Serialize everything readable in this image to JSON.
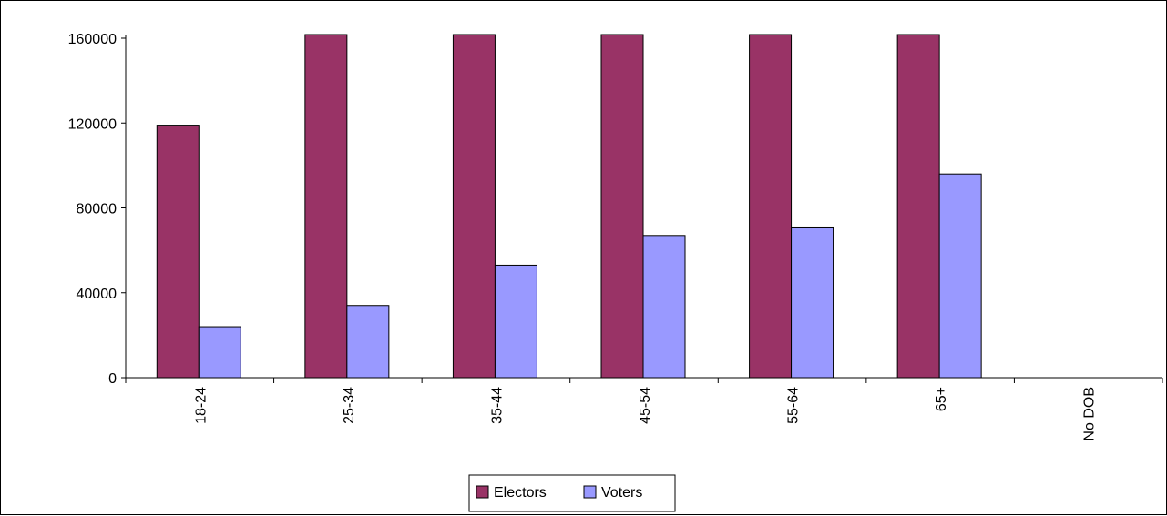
{
  "chart_data": {
    "type": "bar",
    "categories": [
      "18-24",
      "25-34",
      "35-44",
      "45-54",
      "55-64",
      "65+",
      "No DOB"
    ],
    "series": [
      {
        "name": "Electors",
        "color": "#993366",
        "values": [
          119000,
          162000,
          162000,
          162000,
          162000,
          162000,
          0
        ]
      },
      {
        "name": "Voters",
        "color": "#9999ff",
        "values": [
          24000,
          34000,
          53000,
          67000,
          71000,
          96000,
          0
        ]
      }
    ],
    "ylim": [
      0,
      160000
    ],
    "yticks": [
      "160000",
      "120000",
      "80000",
      "40000",
      "0"
    ],
    "clipped_at_max": true,
    "grid": false,
    "legend_position": "bottom",
    "legend": {
      "electors": "Electors",
      "voters": "Voters"
    }
  }
}
